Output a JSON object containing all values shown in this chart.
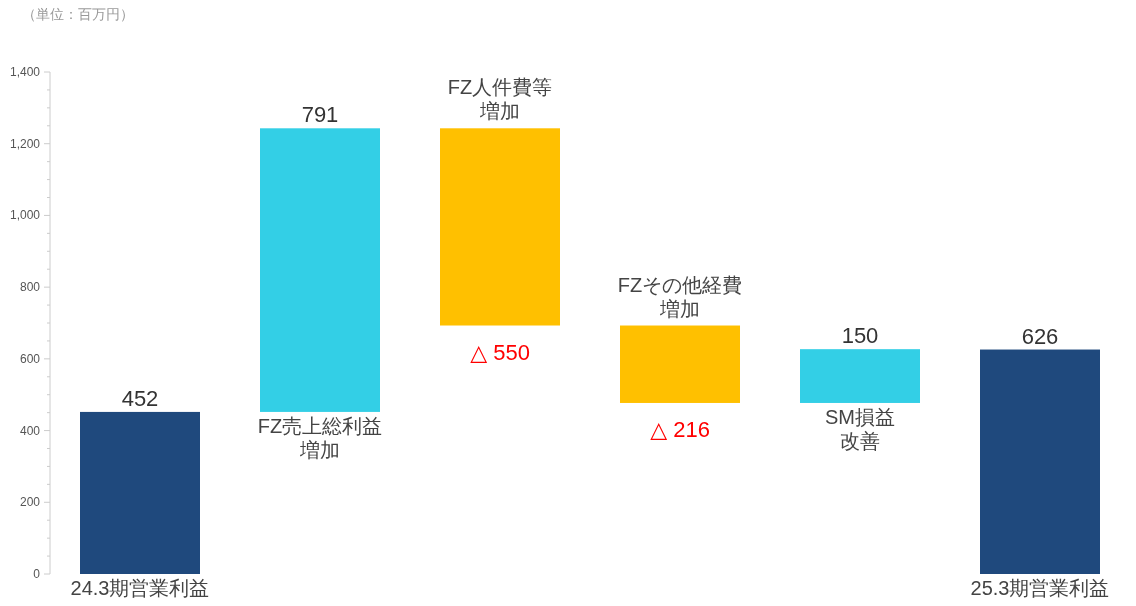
{
  "chart_data": {
    "type": "bar",
    "categories": [
      "24.3期営業利益",
      "FZ売上総利益増加",
      "FZ人件費等増加",
      "FZその他経費増加",
      "SM損益改善",
      "25.3期営業利益"
    ],
    "base": [
      0,
      452,
      1243,
      693,
      477,
      0
    ],
    "values": [
      452,
      791,
      -550,
      -216,
      150,
      626
    ],
    "value_labels": [
      "452",
      "791",
      "△ 550",
      "△ 216",
      "150",
      "626"
    ],
    "colors": [
      "#1f497d",
      "#33cfe6",
      "#ffc000",
      "#ffc000",
      "#33cfe6",
      "#1f497d"
    ],
    "ylim": [
      0,
      1400
    ],
    "yticks": [
      0,
      200,
      400,
      600,
      800,
      {
        "value": 1000,
        "label": "1,000"
      },
      {
        "value": 1200,
        "label": "1,200"
      },
      {
        "value": 1400,
        "label": "1,400"
      }
    ],
    "annotations": [
      "（単位：百万円）"
    ]
  }
}
